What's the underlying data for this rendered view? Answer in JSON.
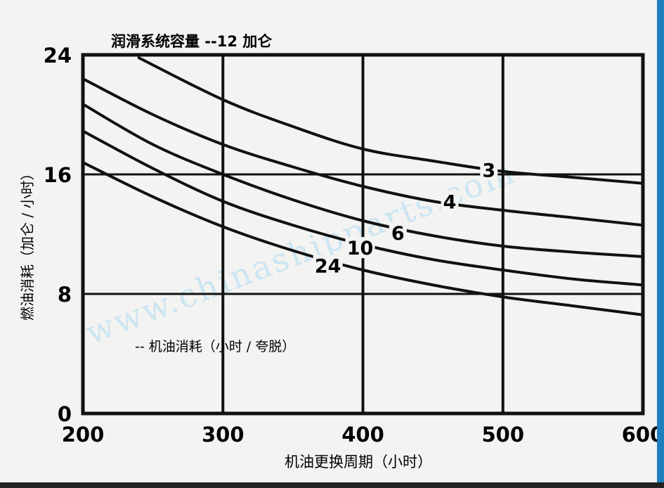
{
  "chart_data": {
    "type": "line",
    "title": "润滑系统容量 --12 加仑",
    "xlabel": "机油更换周期（小时）",
    "ylabel": "燃油消耗（加仑 / 小时）",
    "xlim": [
      200,
      600
    ],
    "ylim": [
      0,
      24
    ],
    "xticks": [
      "200",
      "300",
      "400",
      "500",
      "600"
    ],
    "yticks": [
      "0",
      "8",
      "16",
      "24"
    ],
    "grid": true,
    "annotation": "-- 机油消耗（小时 / 夸脱）",
    "watermark": "www.chinashipparts.com",
    "series": [
      {
        "name": "3",
        "x": [
          240,
          300,
          350,
          400,
          450,
          500,
          550,
          600
        ],
        "y": [
          23.8,
          21.0,
          19.2,
          17.7,
          16.9,
          16.2,
          15.8,
          15.4
        ]
      },
      {
        "name": "4",
        "x": [
          200,
          250,
          300,
          350,
          400,
          450,
          500,
          550,
          600
        ],
        "y": [
          22.4,
          20.0,
          18.0,
          16.5,
          15.2,
          14.2,
          13.6,
          13.1,
          12.6
        ]
      },
      {
        "name": "6",
        "x": [
          200,
          250,
          300,
          350,
          400,
          450,
          500,
          550,
          600
        ],
        "y": [
          20.7,
          18.0,
          16.0,
          14.3,
          12.9,
          11.9,
          11.2,
          10.8,
          10.5
        ]
      },
      {
        "name": "10",
        "x": [
          200,
          250,
          300,
          350,
          400,
          450,
          500,
          550,
          600
        ],
        "y": [
          18.9,
          16.4,
          14.2,
          12.6,
          11.3,
          10.3,
          9.6,
          9.0,
          8.6
        ]
      },
      {
        "name": "24",
        "x": [
          200,
          250,
          300,
          350,
          400,
          450,
          500,
          550,
          600
        ],
        "y": [
          16.8,
          14.5,
          12.5,
          10.9,
          9.6,
          8.6,
          7.8,
          7.2,
          6.6
        ]
      }
    ],
    "series_labels": [
      {
        "text": "3",
        "x": 490,
        "y": 16.3
      },
      {
        "text": "4",
        "x": 462,
        "y": 14.2
      },
      {
        "text": "6",
        "x": 425,
        "y": 12.1
      },
      {
        "text": "10",
        "x": 398,
        "y": 11.1
      },
      {
        "text": "24",
        "x": 375,
        "y": 9.9
      }
    ]
  }
}
